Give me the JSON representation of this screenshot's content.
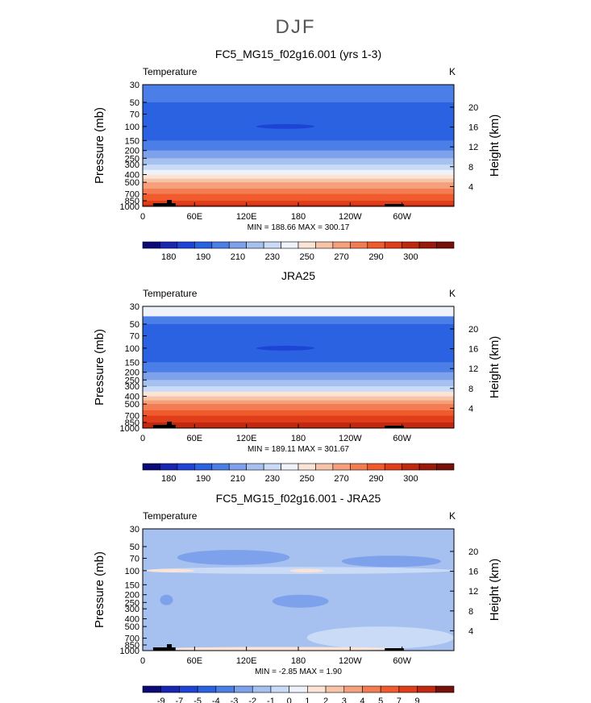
{
  "page": {
    "title": "DJF"
  },
  "axes": {
    "y_label": "Pressure (mb)",
    "y_label_right": "Height (km)",
    "pressure_ticks": [
      "30",
      "50",
      "70",
      "100",
      "150",
      "200",
      "250",
      "300",
      "400",
      "500",
      "700",
      "850",
      "1000"
    ],
    "height_ticks": [
      "20",
      "16",
      "12",
      "8",
      "4"
    ],
    "lon_ticks": [
      "0",
      "60E",
      "120E",
      "180",
      "120W",
      "60W"
    ]
  },
  "chart_data": [
    {
      "type": "heatmap",
      "title": "FC5_MG15_f02g16.001 (yrs 1-3)",
      "variable": "Temperature",
      "units": "K",
      "stats": "MIN = 188.66   MAX = 300.17",
      "colorbar": {
        "labels": [
          "180",
          "190",
          "210",
          "230",
          "250",
          "270",
          "290",
          "300"
        ],
        "colors": [
          "#0a0a78",
          "#1826b4",
          "#1e44d6",
          "#2a62e2",
          "#4c7ee8",
          "#7ea1ec",
          "#a6c1f0",
          "#c9dbf6",
          "#eef2fa",
          "#fbe4d6",
          "#f8c4a8",
          "#f5a07a",
          "#f37c52",
          "#f05a2c",
          "#e03e1a",
          "#c02810",
          "#9a1a0a",
          "#761008"
        ]
      },
      "bands": [
        {
          "p": "30-50",
          "bin": 4
        },
        {
          "p": "50-150",
          "bin": 3
        },
        {
          "p": "150-200",
          "bin": 4
        },
        {
          "p": "200-250",
          "bin": 5
        },
        {
          "p": "250-300",
          "bin": 6
        },
        {
          "p": "300-350",
          "bin": 7
        },
        {
          "p": "350-400",
          "bin": 8
        },
        {
          "p": "400-450",
          "bin": 9
        },
        {
          "p": "450-500",
          "bin": 10
        },
        {
          "p": "500-600",
          "bin": 11
        },
        {
          "p": "600-700",
          "bin": 12
        },
        {
          "p": "700-850",
          "bin": 13
        },
        {
          "p": "850-950",
          "bin": 14
        },
        {
          "p": "950-1000",
          "bin": 15
        }
      ]
    },
    {
      "type": "heatmap",
      "title": "JRA25",
      "variable": "Temperature",
      "units": "K",
      "stats": "MIN = 189.11   MAX = 301.67",
      "colorbar": {
        "labels": [
          "180",
          "190",
          "210",
          "230",
          "250",
          "270",
          "290",
          "300"
        ],
        "colors": [
          "#0a0a78",
          "#1826b4",
          "#1e44d6",
          "#2a62e2",
          "#4c7ee8",
          "#7ea1ec",
          "#a6c1f0",
          "#c9dbf6",
          "#eef2fa",
          "#fbe4d6",
          "#f8c4a8",
          "#f5a07a",
          "#f37c52",
          "#f05a2c",
          "#e03e1a",
          "#c02810",
          "#9a1a0a",
          "#761008"
        ]
      },
      "bands": [
        {
          "p": "30-40",
          "bin": 8
        },
        {
          "p": "40-50",
          "bin": 4
        },
        {
          "p": "50-150",
          "bin": 3
        },
        {
          "p": "150-200",
          "bin": 4
        },
        {
          "p": "200-250",
          "bin": 5
        },
        {
          "p": "250-300",
          "bin": 6
        },
        {
          "p": "300-350",
          "bin": 7
        },
        {
          "p": "350-400",
          "bin": 9
        },
        {
          "p": "400-450",
          "bin": 10
        },
        {
          "p": "450-500",
          "bin": 11
        },
        {
          "p": "500-600",
          "bin": 12
        },
        {
          "p": "600-700",
          "bin": 13
        },
        {
          "p": "700-850",
          "bin": 14
        },
        {
          "p": "850-1000",
          "bin": 15
        }
      ]
    },
    {
      "type": "heatmap",
      "title": "FC5_MG15_f02g16.001 - JRA25",
      "variable": "Temperature",
      "units": "K",
      "stats": "MIN = -2.85   MAX =   1.90",
      "colorbar": {
        "labels": [
          "-9",
          "-7",
          "-5",
          "-4",
          "-3",
          "-2",
          "-1",
          "0",
          "1",
          "2",
          "3",
          "4",
          "5",
          "7",
          "9"
        ],
        "colors": [
          "#0a0a78",
          "#1826b4",
          "#1e44d6",
          "#2a62e2",
          "#4c7ee8",
          "#7ea1ec",
          "#a6c1f0",
          "#c9dbf6",
          "#eef2fa",
          "#fbe4d6",
          "#f8c4a8",
          "#f5a07a",
          "#f37c52",
          "#f05a2c",
          "#e03e1a",
          "#c02810",
          "#761008"
        ]
      },
      "background_bin": 6,
      "patches": [
        {
          "bin": 5,
          "lon": [
            40,
            170
          ],
          "p": [
            55,
            85
          ]
        },
        {
          "bin": 5,
          "lon": [
            230,
            345
          ],
          "p": [
            65,
            90
          ]
        },
        {
          "bin": 7,
          "lon": [
            0,
            360
          ],
          "p": [
            90,
            110
          ]
        },
        {
          "bin": 9,
          "lon": [
            5,
            60
          ],
          "p": [
            95,
            105
          ]
        },
        {
          "bin": 9,
          "lon": [
            170,
            210
          ],
          "p": [
            95,
            105
          ]
        },
        {
          "bin": 5,
          "lon": [
            150,
            215
          ],
          "p": [
            200,
            290
          ]
        },
        {
          "bin": 5,
          "lon": [
            20,
            35
          ],
          "p": [
            200,
            270
          ]
        },
        {
          "bin": 7,
          "lon": [
            190,
            360
          ],
          "p": [
            500,
            950
          ]
        },
        {
          "bin": 9,
          "lon": [
            20,
            300
          ],
          "p": [
            900,
            1000
          ]
        }
      ]
    }
  ]
}
